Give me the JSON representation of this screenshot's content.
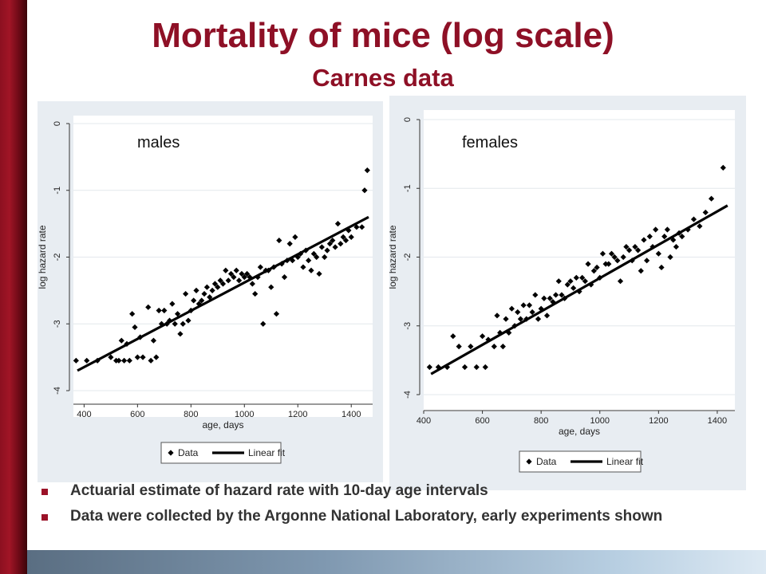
{
  "title": "Mortality of mice (log scale)",
  "subtitle": "Carnes data",
  "bullets": [
    "Actuarial estimate of hazard rate with 10-day age intervals",
    "Data were collected by the Argonne National Laboratory, early experiments shown"
  ],
  "colors": {
    "title": "#8e1026",
    "accent_bar": "#8c1020",
    "panel_bg": "#e8edf2",
    "points": "#000000"
  },
  "chart_data": [
    {
      "type": "scatter",
      "title": "",
      "panel_label": "males",
      "xlabel": "age, days",
      "ylabel": "log hazard rate",
      "xlim": [
        360,
        1480
      ],
      "ylim": [
        -4,
        0
      ],
      "x_ticks": [
        400,
        600,
        800,
        1000,
        1200,
        1400
      ],
      "x_tick_labels": [
        "400",
        "600",
        "800",
        "1000",
        "1200",
        "1400"
      ],
      "y_ticks": [
        -4,
        -3,
        -2,
        -1,
        0
      ],
      "y_tick_labels": [
        "-4",
        "-3",
        "-2",
        "-1",
        "0"
      ],
      "grid": true,
      "legend": {
        "position": "bottom",
        "entries": [
          "Data",
          "Linear fit"
        ]
      },
      "fit": {
        "x": [
          375,
          1465
        ],
        "y": [
          -3.7,
          -1.4
        ]
      },
      "series": [
        {
          "name": "Data",
          "x": [
            370,
            410,
            450,
            500,
            520,
            530,
            540,
            550,
            560,
            570,
            580,
            590,
            600,
            610,
            620,
            640,
            650,
            660,
            670,
            680,
            690,
            700,
            710,
            720,
            730,
            740,
            750,
            760,
            770,
            780,
            790,
            800,
            810,
            820,
            830,
            840,
            850,
            860,
            870,
            880,
            890,
            900,
            910,
            920,
            930,
            940,
            950,
            960,
            970,
            980,
            990,
            1000,
            1010,
            1020,
            1030,
            1040,
            1050,
            1060,
            1070,
            1080,
            1090,
            1100,
            1110,
            1120,
            1130,
            1140,
            1150,
            1160,
            1170,
            1180,
            1190,
            1200,
            1210,
            1220,
            1230,
            1240,
            1250,
            1260,
            1270,
            1280,
            1290,
            1300,
            1310,
            1320,
            1330,
            1340,
            1350,
            1360,
            1370,
            1380,
            1390,
            1400,
            1420,
            1440,
            1450,
            1460
          ],
          "y": [
            -3.55,
            -3.55,
            -3.55,
            -3.5,
            -3.55,
            -3.55,
            -3.25,
            -3.55,
            -3.3,
            -3.55,
            -2.85,
            -3.05,
            -3.5,
            -3.2,
            -3.5,
            -2.75,
            -3.55,
            -3.25,
            -3.5,
            -2.8,
            -3.0,
            -2.8,
            -3.0,
            -2.95,
            -2.7,
            -3.0,
            -2.85,
            -3.15,
            -3.0,
            -2.55,
            -2.95,
            -2.8,
            -2.65,
            -2.5,
            -2.7,
            -2.65,
            -2.55,
            -2.45,
            -2.6,
            -2.5,
            -2.4,
            -2.45,
            -2.35,
            -2.4,
            -2.2,
            -2.35,
            -2.25,
            -2.3,
            -2.2,
            -2.35,
            -2.25,
            -2.3,
            -2.25,
            -2.3,
            -2.4,
            -2.55,
            -2.3,
            -2.15,
            -3.0,
            -2.2,
            -2.2,
            -2.45,
            -2.15,
            -2.85,
            -1.75,
            -2.1,
            -2.3,
            -2.05,
            -1.8,
            -2.05,
            -1.7,
            -2.0,
            -1.95,
            -2.15,
            -1.9,
            -2.05,
            -2.2,
            -1.95,
            -2.0,
            -2.25,
            -1.85,
            -2.0,
            -1.9,
            -1.8,
            -1.75,
            -1.85,
            -1.5,
            -1.8,
            -1.7,
            -1.75,
            -1.6,
            -1.7,
            -1.55,
            -1.55,
            -1.0,
            -0.7
          ],
          "marker": "diamond"
        }
      ]
    },
    {
      "type": "scatter",
      "title": "",
      "panel_label": "females",
      "xlabel": "age, days",
      "ylabel": "log hazard rate",
      "xlim": [
        400,
        1460
      ],
      "ylim": [
        -4,
        0
      ],
      "x_ticks": [
        400,
        600,
        800,
        1000,
        1200,
        1400
      ],
      "x_tick_labels": [
        "400",
        "600",
        "800",
        "1000",
        "1200",
        "1400"
      ],
      "y_ticks": [
        -4,
        -3,
        -2,
        -1,
        0
      ],
      "y_tick_labels": [
        "-4",
        "-3",
        "-2",
        "-1",
        "0"
      ],
      "grid": true,
      "legend": {
        "position": "bottom",
        "entries": [
          "Data",
          "Linear fit"
        ]
      },
      "fit": {
        "x": [
          425,
          1435
        ],
        "y": [
          -3.7,
          -1.25
        ]
      },
      "series": [
        {
          "name": "Data",
          "x": [
            420,
            450,
            480,
            500,
            520,
            540,
            560,
            580,
            600,
            610,
            620,
            640,
            650,
            660,
            670,
            680,
            690,
            700,
            710,
            720,
            730,
            740,
            750,
            760,
            770,
            780,
            790,
            800,
            810,
            820,
            830,
            840,
            850,
            860,
            870,
            880,
            890,
            900,
            910,
            920,
            930,
            940,
            950,
            960,
            970,
            980,
            990,
            1000,
            1010,
            1020,
            1030,
            1040,
            1050,
            1060,
            1070,
            1080,
            1090,
            1100,
            1110,
            1120,
            1130,
            1140,
            1150,
            1160,
            1170,
            1180,
            1190,
            1200,
            1210,
            1220,
            1230,
            1240,
            1250,
            1260,
            1270,
            1280,
            1300,
            1320,
            1340,
            1360,
            1380,
            1420
          ],
          "y": [
            -3.6,
            -3.6,
            -3.6,
            -3.15,
            -3.3,
            -3.6,
            -3.3,
            -3.6,
            -3.15,
            -3.6,
            -3.2,
            -3.3,
            -2.85,
            -3.1,
            -3.3,
            -2.9,
            -3.1,
            -2.75,
            -3.0,
            -2.8,
            -2.9,
            -2.7,
            -2.9,
            -2.7,
            -2.8,
            -2.55,
            -2.9,
            -2.75,
            -2.6,
            -2.85,
            -2.6,
            -2.65,
            -2.55,
            -2.35,
            -2.55,
            -2.6,
            -2.4,
            -2.35,
            -2.45,
            -2.3,
            -2.5,
            -2.3,
            -2.35,
            -2.1,
            -2.4,
            -2.2,
            -2.15,
            -2.3,
            -1.95,
            -2.1,
            -2.1,
            -1.95,
            -2.0,
            -2.05,
            -2.35,
            -2.0,
            -1.85,
            -1.9,
            -2.05,
            -1.85,
            -1.9,
            -2.2,
            -1.75,
            -2.05,
            -1.7,
            -1.85,
            -1.6,
            -1.95,
            -2.15,
            -1.7,
            -1.6,
            -2.0,
            -1.75,
            -1.85,
            -1.65,
            -1.7,
            -1.6,
            -1.45,
            -1.55,
            -1.35,
            -1.15,
            -0.7
          ],
          "marker": "diamond"
        }
      ]
    }
  ]
}
